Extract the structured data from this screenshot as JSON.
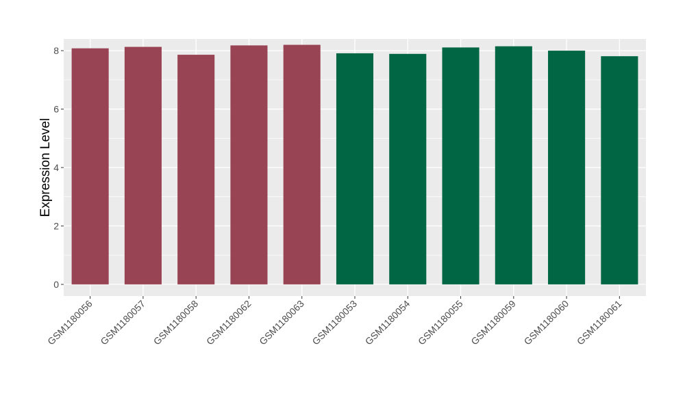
{
  "chart_data": {
    "type": "bar",
    "title": "",
    "xlabel": "",
    "ylabel": "Expression Level",
    "ylim": [
      -0.4,
      8.4
    ],
    "yticks": [
      0,
      2,
      4,
      6,
      8
    ],
    "grid": true,
    "categories": [
      "GSM1180056",
      "GSM1180057",
      "GSM1180058",
      "GSM1180062",
      "GSM1180063",
      "GSM1180053",
      "GSM1180054",
      "GSM1180055",
      "GSM1180059",
      "GSM1180060",
      "GSM1180061"
    ],
    "values": [
      8.08,
      8.13,
      7.86,
      8.18,
      8.2,
      7.91,
      7.89,
      8.11,
      8.15,
      8.0,
      7.81
    ],
    "group_colors": [
      "#994455",
      "#994455",
      "#994455",
      "#994455",
      "#994455",
      "#006644",
      "#006644",
      "#006644",
      "#006644",
      "#006644",
      "#006644"
    ],
    "panel_background": "#EBEBEB",
    "gridline_color": "#FFFFFF"
  }
}
